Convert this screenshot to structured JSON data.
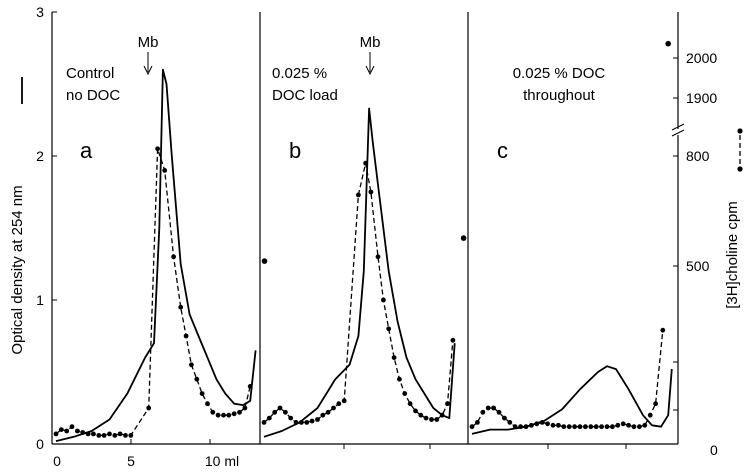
{
  "chart_data": {
    "type": "line",
    "left_axis": {
      "label": "Optical density at 254 nm",
      "ylim": [
        0,
        3
      ],
      "ticks": [
        "0",
        "1",
        "2",
        "3"
      ]
    },
    "right_axis": {
      "label": "[3H]choline cpm",
      "tick_labels": [
        "0",
        "500",
        "800",
        "1900",
        "2000"
      ],
      "axis_break": true
    },
    "x_axis": {
      "tick_labels": [
        "0",
        "5",
        "10 ml"
      ],
      "xlim": [
        0,
        11
      ]
    },
    "panels": [
      {
        "letter": "a",
        "title": [
          "Control",
          "no DOC"
        ],
        "marker": "Mb",
        "od": [
          [
            0,
            0.02
          ],
          [
            1,
            0.05
          ],
          [
            2,
            0.09
          ],
          [
            3,
            0.17
          ],
          [
            4,
            0.35
          ],
          [
            5,
            0.6
          ],
          [
            5.5,
            0.7
          ],
          [
            5.8,
            1.5
          ],
          [
            6,
            2.6
          ],
          [
            6.2,
            2.5
          ],
          [
            6.5,
            2.0
          ],
          [
            7,
            1.25
          ],
          [
            7.5,
            0.9
          ],
          [
            8,
            0.75
          ],
          [
            8.5,
            0.6
          ],
          [
            9,
            0.45
          ],
          [
            9.5,
            0.35
          ],
          [
            10,
            0.28
          ],
          [
            10.5,
            0.27
          ],
          [
            10.9,
            0.3
          ],
          [
            11.2,
            0.65
          ]
        ],
        "cpm": [
          [
            0,
            0.07
          ],
          [
            0.3,
            0.1
          ],
          [
            0.6,
            0.09
          ],
          [
            0.9,
            0.12
          ],
          [
            1.2,
            0.09
          ],
          [
            1.5,
            0.08
          ],
          [
            1.8,
            0.07
          ],
          [
            2.1,
            0.07
          ],
          [
            2.4,
            0.06
          ],
          [
            2.7,
            0.06
          ],
          [
            3,
            0.07
          ],
          [
            3.3,
            0.06
          ],
          [
            3.6,
            0.07
          ],
          [
            3.9,
            0.06
          ],
          [
            4.2,
            0.06
          ],
          [
            5.2,
            0.25
          ],
          [
            5.7,
            2.05
          ],
          [
            6.1,
            1.9
          ],
          [
            6.6,
            1.3
          ],
          [
            7.0,
            0.95
          ],
          [
            7.3,
            0.75
          ],
          [
            7.6,
            0.55
          ],
          [
            7.9,
            0.45
          ],
          [
            8.2,
            0.35
          ],
          [
            8.5,
            0.28
          ],
          [
            8.8,
            0.22
          ],
          [
            9.1,
            0.2
          ],
          [
            9.4,
            0.2
          ],
          [
            9.7,
            0.2
          ],
          [
            10,
            0.21
          ],
          [
            10.3,
            0.22
          ],
          [
            10.6,
            0.25
          ],
          [
            10.9,
            0.4
          ]
        ],
        "outlier": [
          11.7,
          1.27
        ]
      },
      {
        "letter": "b",
        "title": [
          "0.025 %",
          "DOC load"
        ],
        "marker": "Mb",
        "od": [
          [
            0,
            0.05
          ],
          [
            1,
            0.09
          ],
          [
            2,
            0.15
          ],
          [
            3,
            0.25
          ],
          [
            4,
            0.45
          ],
          [
            4.8,
            0.55
          ],
          [
            5.3,
            0.75
          ],
          [
            5.6,
            1.2
          ],
          [
            5.9,
            2.33
          ],
          [
            6.1,
            2.1
          ],
          [
            6.4,
            1.8
          ],
          [
            7,
            1.2
          ],
          [
            7.5,
            0.85
          ],
          [
            8,
            0.6
          ],
          [
            8.5,
            0.45
          ],
          [
            9,
            0.35
          ],
          [
            9.5,
            0.25
          ],
          [
            10,
            0.2
          ],
          [
            10.4,
            0.18
          ],
          [
            10.7,
            0.7
          ]
        ],
        "cpm": [
          [
            0,
            0.15
          ],
          [
            0.3,
            0.18
          ],
          [
            0.6,
            0.22
          ],
          [
            0.9,
            0.25
          ],
          [
            1.2,
            0.22
          ],
          [
            1.5,
            0.18
          ],
          [
            1.8,
            0.15
          ],
          [
            2.1,
            0.15
          ],
          [
            2.4,
            0.15
          ],
          [
            2.7,
            0.16
          ],
          [
            3,
            0.17
          ],
          [
            3.3,
            0.2
          ],
          [
            3.6,
            0.22
          ],
          [
            3.9,
            0.25
          ],
          [
            4.2,
            0.28
          ],
          [
            4.5,
            0.3
          ],
          [
            5.3,
            1.73
          ],
          [
            5.7,
            1.95
          ],
          [
            6.0,
            1.75
          ],
          [
            6.4,
            1.3
          ],
          [
            6.7,
            1.0
          ],
          [
            7.0,
            0.8
          ],
          [
            7.3,
            0.6
          ],
          [
            7.6,
            0.45
          ],
          [
            7.9,
            0.35
          ],
          [
            8.2,
            0.28
          ],
          [
            8.5,
            0.23
          ],
          [
            8.8,
            0.2
          ],
          [
            9.1,
            0.18
          ],
          [
            9.4,
            0.17
          ],
          [
            9.7,
            0.17
          ],
          [
            10,
            0.2
          ],
          [
            10.3,
            0.28
          ],
          [
            10.6,
            0.72
          ]
        ],
        "outlier": [
          11.2,
          1.43
        ]
      },
      {
        "letter": "c",
        "title": [
          "0.025 % DOC",
          "throughout"
        ],
        "marker": "",
        "od": [
          [
            0,
            0.07
          ],
          [
            1,
            0.1
          ],
          [
            2,
            0.1
          ],
          [
            3,
            0.12
          ],
          [
            4,
            0.16
          ],
          [
            5,
            0.24
          ],
          [
            6,
            0.38
          ],
          [
            7,
            0.5
          ],
          [
            7.5,
            0.54
          ],
          [
            8,
            0.52
          ],
          [
            8.7,
            0.38
          ],
          [
            9.5,
            0.2
          ],
          [
            10,
            0.13
          ],
          [
            10.5,
            0.12
          ],
          [
            10.9,
            0.2
          ],
          [
            11.1,
            0.52
          ]
        ],
        "cpm": [
          [
            0,
            0.12
          ],
          [
            0.3,
            0.15
          ],
          [
            0.6,
            0.22
          ],
          [
            0.9,
            0.25
          ],
          [
            1.2,
            0.25
          ],
          [
            1.5,
            0.22
          ],
          [
            1.8,
            0.18
          ],
          [
            2.1,
            0.15
          ],
          [
            2.4,
            0.12
          ],
          [
            2.7,
            0.12
          ],
          [
            3,
            0.12
          ],
          [
            3.3,
            0.13
          ],
          [
            3.6,
            0.14
          ],
          [
            3.9,
            0.15
          ],
          [
            4.2,
            0.14
          ],
          [
            4.5,
            0.13
          ],
          [
            4.8,
            0.13
          ],
          [
            5.1,
            0.12
          ],
          [
            5.4,
            0.12
          ],
          [
            5.7,
            0.12
          ],
          [
            6,
            0.12
          ],
          [
            6.3,
            0.12
          ],
          [
            6.6,
            0.12
          ],
          [
            6.9,
            0.12
          ],
          [
            7.2,
            0.12
          ],
          [
            7.5,
            0.12
          ],
          [
            7.8,
            0.12
          ],
          [
            8.1,
            0.13
          ],
          [
            8.4,
            0.14
          ],
          [
            8.7,
            0.13
          ],
          [
            9.0,
            0.12
          ],
          [
            9.3,
            0.12
          ],
          [
            9.6,
            0.13
          ],
          [
            9.9,
            0.2
          ],
          [
            10.2,
            0.28
          ],
          [
            10.6,
            0.79
          ]
        ],
        "outlier": [
          10.9,
          2.78
        ]
      }
    ]
  }
}
